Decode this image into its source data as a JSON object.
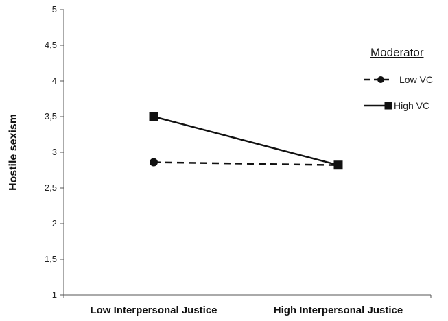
{
  "chart_data": {
    "type": "line",
    "xlabel": "",
    "ylabel": "Hostile sexism",
    "categories": [
      "Low Interpersonal Justice",
      "High Interpersonal Justice"
    ],
    "y_ticks": [
      "1",
      "1,5",
      "2",
      "2,5",
      "3",
      "3,5",
      "4",
      "4,5",
      "5"
    ],
    "ylim": [
      1,
      5
    ],
    "grid": false,
    "legend": {
      "title": "Moderator",
      "placement": "right"
    },
    "series": [
      {
        "name": "Low VC",
        "values": [
          2.86,
          2.82
        ],
        "style": "dashed",
        "marker": "circle",
        "color": "#111111"
      },
      {
        "name": "High VC",
        "values": [
          3.5,
          2.82
        ],
        "style": "solid",
        "marker": "square",
        "color": "#111111"
      }
    ]
  }
}
